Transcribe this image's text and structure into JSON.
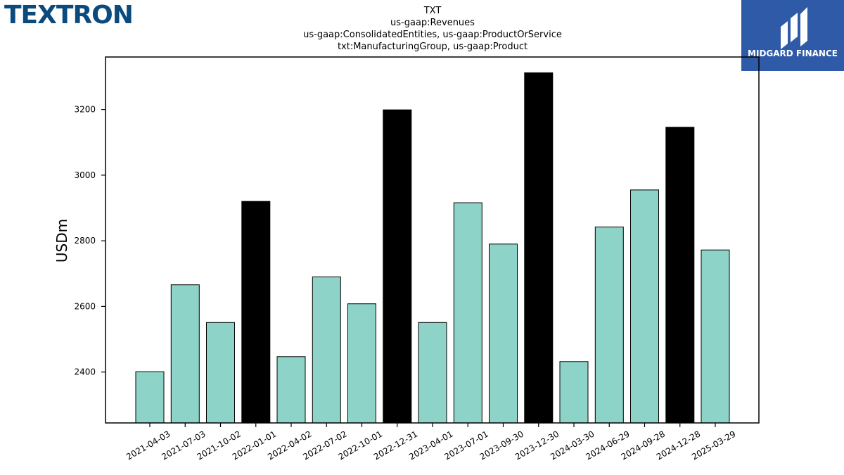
{
  "header": {
    "company_logo": "TEXTRON",
    "source_logo": "MIDGARD FINANCE",
    "title_lines": [
      "TXT",
      "us-gaap:Revenues",
      "us-gaap:ConsolidatedEntities, us-gaap:ProductOrService",
      "txt:ManufacturingGroup, us-gaap:Product"
    ]
  },
  "colors": {
    "regular": "#8dd3c7",
    "highlight": "#000000",
    "edge": "#000000",
    "logo_left": "#0b4a7d",
    "logo_right_bg": "#2e5aa8"
  },
  "chart_data": {
    "type": "bar",
    "title": "",
    "xlabel": "",
    "ylabel": "USDm",
    "ylim": [
      2245,
      3360
    ],
    "yticks": [
      2400,
      2600,
      2800,
      3000,
      3200
    ],
    "grid": false,
    "categories": [
      "2021-04-03",
      "2021-07-03",
      "2021-10-02",
      "2022-01-01",
      "2022-04-02",
      "2022-07-02",
      "2022-10-01",
      "2022-12-31",
      "2023-04-01",
      "2023-07-01",
      "2023-09-30",
      "2023-12-30",
      "2024-03-30",
      "2024-06-29",
      "2024-09-28",
      "2024-12-28",
      "2025-03-29"
    ],
    "values": [
      2401,
      2666,
      2551,
      2920,
      2447,
      2690,
      2608,
      3199,
      2551,
      2916,
      2790,
      3312,
      2432,
      2842,
      2955,
      3146,
      2772
    ],
    "highlighted": [
      false,
      false,
      false,
      true,
      false,
      false,
      false,
      true,
      false,
      false,
      false,
      true,
      false,
      false,
      false,
      true,
      false
    ]
  }
}
